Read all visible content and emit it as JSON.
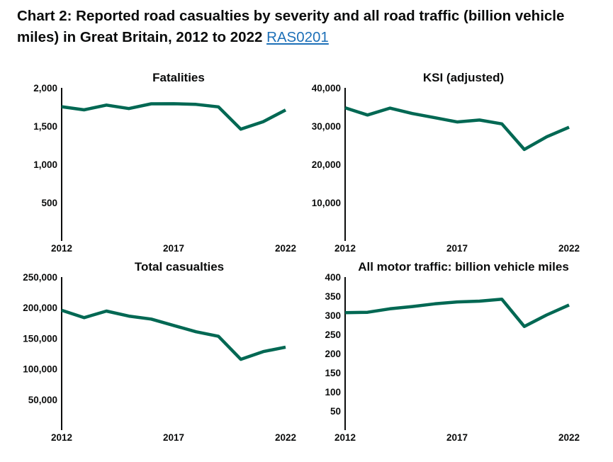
{
  "heading": {
    "text": "Chart 2: Reported road casualties by severity and all road traffic (billion vehicle miles) in Great Britain, 2012 to 2022",
    "link_label": "RAS0201"
  },
  "colors": {
    "line": "#006853",
    "axis": "#0b0c0c",
    "link": "#1d70b8"
  },
  "chart_data": [
    {
      "type": "line",
      "title": "Fatalities",
      "x": [
        2012,
        2013,
        2014,
        2015,
        2016,
        2017,
        2018,
        2019,
        2020,
        2021,
        2022
      ],
      "x_ticks": [
        "2012",
        "2017",
        "2022"
      ],
      "y_ticks": [
        "2,000",
        "1,500",
        "1,000",
        "500"
      ],
      "ylim": [
        0,
        2000
      ],
      "series": [
        {
          "values": [
            1754,
            1713,
            1775,
            1730,
            1792,
            1793,
            1784,
            1752,
            1460,
            1558,
            1711
          ]
        }
      ]
    },
    {
      "type": "line",
      "title": "KSI (adjusted)",
      "x": [
        2012,
        2013,
        2014,
        2015,
        2016,
        2017,
        2018,
        2019,
        2020,
        2021,
        2022
      ],
      "x_ticks": [
        "2012",
        "2017",
        "2022"
      ],
      "y_ticks": [
        "40,000",
        "30,000",
        "20,000",
        "10,000"
      ],
      "ylim": [
        0,
        40000
      ],
      "series": [
        {
          "values": [
            34800,
            32900,
            34700,
            33300,
            32200,
            31100,
            31600,
            30600,
            23900,
            27200,
            29700
          ]
        }
      ]
    },
    {
      "type": "line",
      "title": "Total casualties",
      "x": [
        2012,
        2013,
        2014,
        2015,
        2016,
        2017,
        2018,
        2019,
        2020,
        2021,
        2022
      ],
      "x_ticks": [
        "2012",
        "2017",
        "2022"
      ],
      "y_ticks": [
        "250,000",
        "200,000",
        "150,000",
        "100,000",
        "50,000"
      ],
      "ylim": [
        0,
        250000
      ],
      "series": [
        {
          "values": [
            195700,
            183700,
            194500,
            186200,
            181400,
            170900,
            160600,
            153200,
            115600,
            128200,
            135500
          ]
        }
      ]
    },
    {
      "type": "line",
      "title": "All motor traffic: billion vehicle miles",
      "x": [
        2012,
        2013,
        2014,
        2015,
        2016,
        2017,
        2018,
        2019,
        2020,
        2021,
        2022
      ],
      "x_ticks": [
        "2012",
        "2017",
        "2022"
      ],
      "y_ticks": [
        "400",
        "350",
        "300",
        "250",
        "200",
        "150",
        "100",
        "50"
      ],
      "ylim": [
        0,
        400
      ],
      "series": [
        {
          "values": [
            307,
            308,
            317,
            323,
            330,
            335,
            337,
            342,
            271,
            301,
            327
          ]
        }
      ]
    }
  ]
}
